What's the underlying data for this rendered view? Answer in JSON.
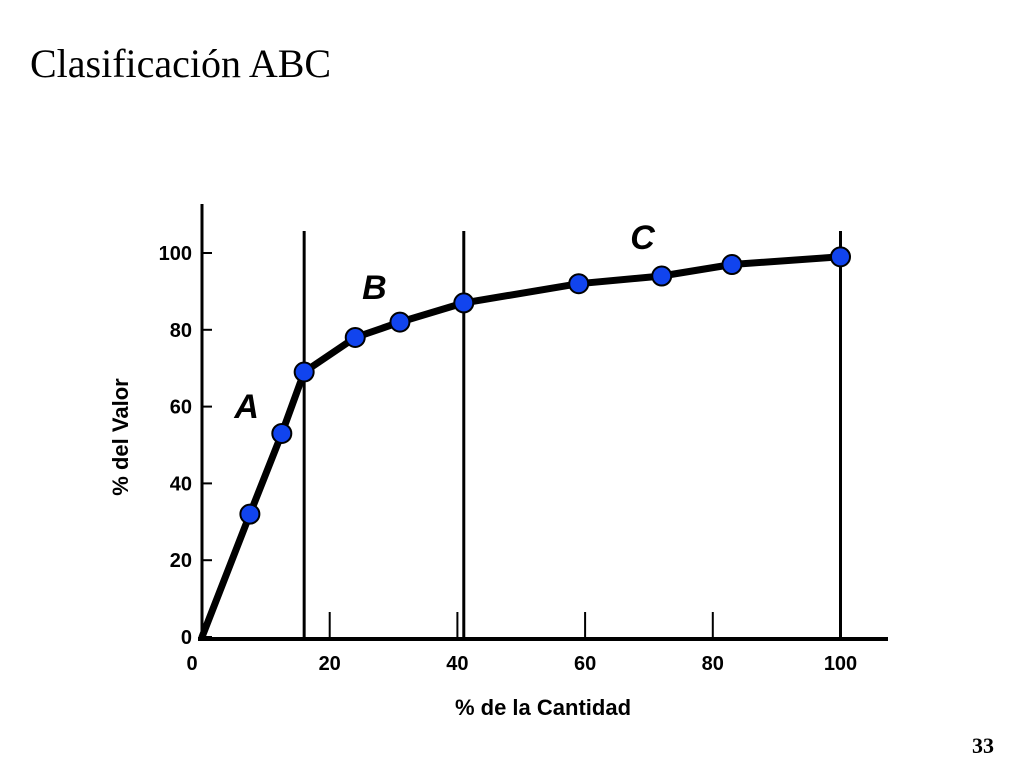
{
  "slide": {
    "title": "Clasificación ABC",
    "page_number": "33"
  },
  "chart_data": {
    "type": "line",
    "title": "",
    "xlabel": "% de la Cantidad",
    "ylabel": "% del Valor",
    "xlim": [
      0,
      105
    ],
    "ylim": [
      0,
      105
    ],
    "x_ticks": [
      0,
      20,
      40,
      60,
      80,
      100
    ],
    "y_ticks": [
      0,
      20,
      40,
      60,
      80,
      100
    ],
    "grid": false,
    "legend": "none",
    "line_color": "#000000",
    "marker_color": "#1144ee",
    "series": [
      {
        "x": [
          0,
          7.5,
          12.5,
          16,
          24,
          31,
          41,
          59,
          72,
          83,
          100
        ],
        "y": [
          0,
          32,
          53,
          69,
          78,
          82,
          87,
          92,
          94,
          97,
          99
        ]
      }
    ],
    "marker_x": [
      7.5,
      12.5,
      16,
      24,
      31,
      41,
      59,
      72,
      83,
      100
    ],
    "marker_y": [
      32,
      53,
      69,
      78,
      82,
      87,
      92,
      94,
      97,
      99
    ],
    "dividers_x": [
      16,
      41,
      100
    ],
    "annotations": [
      {
        "text": "A",
        "x": 7,
        "y": 57
      },
      {
        "text": "B",
        "x": 27,
        "y": 88
      },
      {
        "text": "C",
        "x": 69,
        "y": 101
      }
    ]
  }
}
